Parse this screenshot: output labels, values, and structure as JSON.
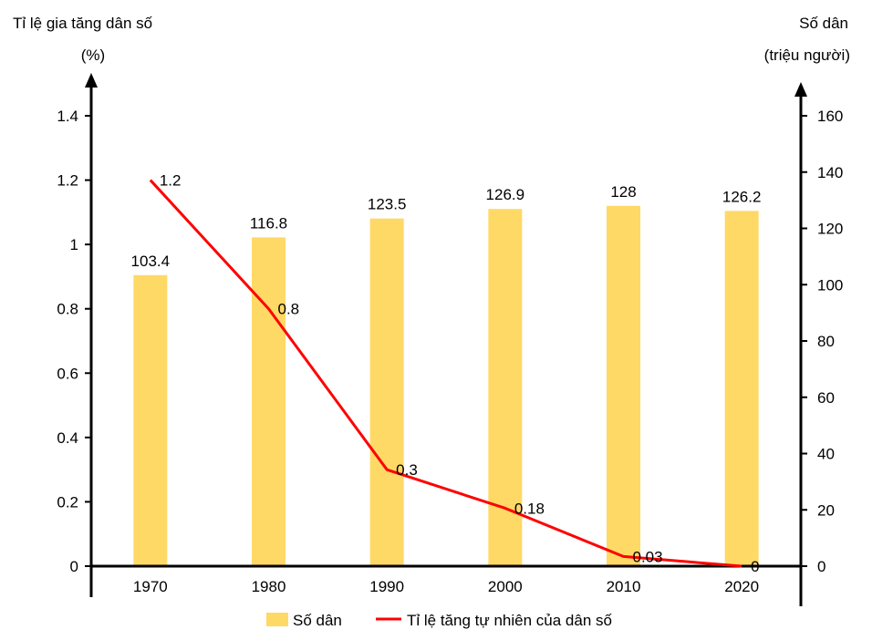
{
  "chart_data": {
    "type": "bar",
    "categories": [
      "1970",
      "1980",
      "1990",
      "2000",
      "2010",
      "2020"
    ],
    "series": [
      {
        "name": "Số dân",
        "type": "bar",
        "axis": "right",
        "values": [
          103.4,
          116.8,
          123.5,
          126.9,
          128,
          126.2
        ],
        "labels": [
          "103.4",
          "116.8",
          "123.5",
          "126.9",
          "128",
          "126.2"
        ]
      },
      {
        "name": "Tỉ lệ tăng tự nhiên của dân số",
        "type": "line",
        "axis": "left",
        "values": [
          1.2,
          0.8,
          0.3,
          0.18,
          0.03,
          0
        ],
        "labels": [
          "1.2",
          "0.8",
          "0.3",
          "0.18",
          "0.03",
          "0"
        ]
      }
    ],
    "left_axis": {
      "title_line1": "Tỉ lệ gia tăng dân số",
      "title_line2": "(%)",
      "range": [
        0,
        1.4
      ],
      "ticks": [
        "0",
        "0.2",
        "0.4",
        "0.6",
        "0.8",
        "1",
        "1.2",
        "1.4"
      ]
    },
    "right_axis": {
      "title_line1": "Số dân",
      "title_line2": "(triệu người)",
      "range": [
        0,
        160
      ],
      "ticks": [
        "0",
        "20",
        "40",
        "60",
        "80",
        "100",
        "120",
        "140",
        "160"
      ]
    },
    "legend_position": "bottom",
    "grid": false,
    "colors": {
      "bar": "#FFD966",
      "line": "#FF0000",
      "axis": "#000000"
    }
  }
}
